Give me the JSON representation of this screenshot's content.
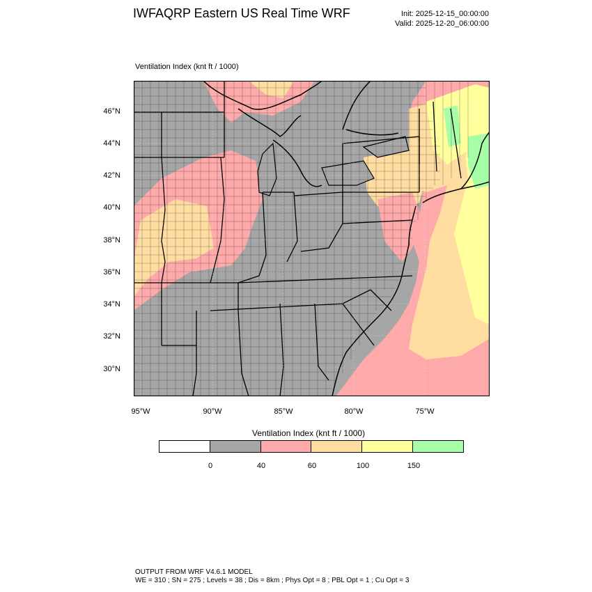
{
  "header": {
    "title": "IWFAQRP Eastern US Real Time WRF",
    "init": "Init: 2025-12-15_00:00:00",
    "valid": "Valid: 2025-12-20_06:00:00"
  },
  "map": {
    "field_label": "Ventilation Index   (knt ft / 1000)",
    "lat_labels": [
      "46°N",
      "44°N",
      "42°N",
      "40°N",
      "38°N",
      "36°N",
      "34°N",
      "32°N",
      "30°N"
    ],
    "lon_labels": [
      "95°W",
      "90°W",
      "85°W",
      "80°W",
      "75°W"
    ]
  },
  "colorbar": {
    "title": "Ventilation Index  (knt ft / 1000)",
    "ticks": [
      "0",
      "40",
      "60",
      "100",
      "150"
    ],
    "colors": [
      "#ffffff",
      "#a6a6a6",
      "#ffaaaa",
      "#ffdca0",
      "#ffff9e",
      "#a6ffa6"
    ]
  },
  "footer": {
    "line1": "OUTPUT FROM WRF V4.6.1 MODEL",
    "line2": "WE = 310 ; SN = 275 ; Levels = 38 ; Dis = 8km ; Phys Opt = 8 ; PBL Opt = 1 ; Cu Opt = 3"
  }
}
